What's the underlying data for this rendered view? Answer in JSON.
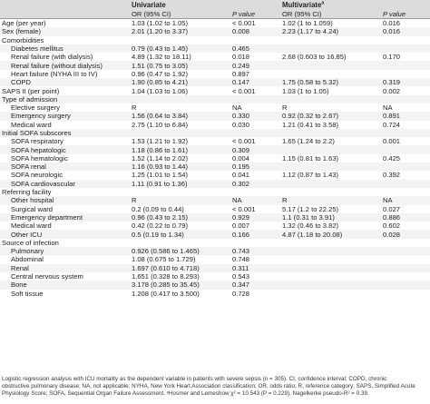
{
  "header": {
    "group_univariate": "Univariate",
    "group_multivariate": "Multivariate",
    "group_multivariate_mark": "a",
    "col_or": "OR (95% CI)",
    "col_p": "P value"
  },
  "rows": [
    {
      "label": "Age (per year)",
      "indent": false,
      "uni_or": "1.03 (1.02 to 1.05)",
      "uni_p": "< 0.001",
      "multi_or": "1.02 (1 to 1.059)",
      "multi_p": "0.016"
    },
    {
      "label": "Sex (female)",
      "indent": false,
      "uni_or": "2.01 (1.20 to 3.37)",
      "uni_p": "0.008",
      "multi_or": "2.23 (1.17 to 4.24)",
      "multi_p": "0.016"
    },
    {
      "label": "Comorbidities",
      "indent": false,
      "uni_or": "",
      "uni_p": "",
      "multi_or": "",
      "multi_p": ""
    },
    {
      "label": "Diabetes mellitus",
      "indent": true,
      "uni_or": "0.79 (0.43 to 1.45)",
      "uni_p": "0.465",
      "multi_or": "",
      "multi_p": ""
    },
    {
      "label": "Renal failure (with dialysis)",
      "indent": true,
      "uni_or": "4.89 (1.32 to 18.11)",
      "uni_p": "0.018",
      "multi_or": "2.68 (0.603 to 16.85)",
      "multi_p": "0.170"
    },
    {
      "label": "Renal failure (without dialysis)",
      "indent": true,
      "uni_or": "1.51 (0.75 to 3.05)",
      "uni_p": "0.249",
      "multi_or": "",
      "multi_p": ""
    },
    {
      "label": "Heart failure (NYHA III to IV)",
      "indent": true,
      "uni_or": "0.96 (0.47 to 1.92)",
      "uni_p": "0.897",
      "multi_or": "",
      "multi_p": ""
    },
    {
      "label": "COPD",
      "indent": true,
      "uni_or": "1.90 (0.85 to 4.21)",
      "uni_p": "0.147",
      "multi_or": "1.75 (0.58 to 5.32)",
      "multi_p": "0.319"
    },
    {
      "label": "SAPS II (per point)",
      "indent": false,
      "uni_or": "1.04 (1.03 to 1.06)",
      "uni_p": "< 0.001",
      "multi_or": "1.03 (1 to 1.05)",
      "multi_p": "0.002"
    },
    {
      "label": "Type of admission",
      "indent": false,
      "uni_or": "",
      "uni_p": "",
      "multi_or": "",
      "multi_p": ""
    },
    {
      "label": "Elective surgery",
      "indent": true,
      "uni_or": "R",
      "uni_p": "NA",
      "multi_or": "R",
      "multi_p": "NA"
    },
    {
      "label": "Emergency surgery",
      "indent": true,
      "uni_or": "1.56 (0.64 to 3.84)",
      "uni_p": "0.330",
      "multi_or": "0.92 (0.32 to 2.67)",
      "multi_p": "0.891"
    },
    {
      "label": "Medical ward",
      "indent": true,
      "uni_or": "2.75 (1.10 to 6.84)",
      "uni_p": "0.030",
      "multi_or": "1.21 (0.41 to 3.58)",
      "multi_p": "0.724"
    },
    {
      "label": "Initial SOFA subscores",
      "indent": false,
      "uni_or": "",
      "uni_p": "",
      "multi_or": "",
      "multi_p": ""
    },
    {
      "label": "SOFA respiratory",
      "indent": true,
      "uni_or": "1.53 (1.21 to 1.92)",
      "uni_p": "< 0.001",
      "multi_or": "1.65 (1.24 to 2.2)",
      "multi_p": "0.001"
    },
    {
      "label": "SOFA hepatologic",
      "indent": true,
      "uni_or": "1.18 (0.86 to 1.61)",
      "uni_p": "0.309",
      "multi_or": "",
      "multi_p": ""
    },
    {
      "label": "SOFA hematologic",
      "indent": true,
      "uni_or": "1.52 (1.14 to 2.02)",
      "uni_p": "0.004",
      "multi_or": "1.15 (0.81 to 1.63)",
      "multi_p": "0.425"
    },
    {
      "label": "SOFA renal",
      "indent": true,
      "uni_or": "1.16 (0.93 to 1.44)",
      "uni_p": "0.195",
      "multi_or": "",
      "multi_p": ""
    },
    {
      "label": "SOFA neurologic",
      "indent": true,
      "uni_or": "1.25 (1.01 to 1.54)",
      "uni_p": "0.041",
      "multi_or": "1.12 (0.87 to 1.43)",
      "multi_p": "0.392"
    },
    {
      "label": "SOFA cardiovascular",
      "indent": true,
      "uni_or": "1.11 (0.91 to 1.36)",
      "uni_p": "0.302",
      "multi_or": "",
      "multi_p": ""
    },
    {
      "label": "Referring facility",
      "indent": false,
      "uni_or": "",
      "uni_p": "",
      "multi_or": "",
      "multi_p": ""
    },
    {
      "label": "Other hospital",
      "indent": true,
      "uni_or": "R",
      "uni_p": "NA",
      "multi_or": "R",
      "multi_p": "NA"
    },
    {
      "label": "Surgical ward",
      "indent": true,
      "uni_or": "0.2 (0.09 to 0.44)",
      "uni_p": "< 0.001",
      "multi_or": "5.17 (1.2 to 22.25)",
      "multi_p": "0.027"
    },
    {
      "label": "Emergency department",
      "indent": true,
      "uni_or": "0.96 (0.43 to 2.15)",
      "uni_p": "0.929",
      "multi_or": "1.1 (0.31 to 3.91)",
      "multi_p": "0.886"
    },
    {
      "label": "Medical ward",
      "indent": true,
      "uni_or": "0.42 (0.22 to 0.79)",
      "uni_p": "0.007",
      "multi_or": "1.32 (0.46 to 3.82)",
      "multi_p": "0.602"
    },
    {
      "label": "Other ICU",
      "indent": true,
      "uni_or": "0.5 (0.19 to 1.34)",
      "uni_p": "0.166",
      "multi_or": "4.87 (1.18 to 20.08)",
      "multi_p": "0.028"
    },
    {
      "label": "Source of infection",
      "indent": false,
      "uni_or": "",
      "uni_p": "",
      "multi_or": "",
      "multi_p": ""
    },
    {
      "label": "Pulmonary",
      "indent": true,
      "uni_or": "0.926 (0.586 to 1.465)",
      "uni_p": "0.743",
      "multi_or": "",
      "multi_p": ""
    },
    {
      "label": "Abdominal",
      "indent": true,
      "uni_or": "1.08 (0.675 to 1.729)",
      "uni_p": "0.748",
      "multi_or": "",
      "multi_p": ""
    },
    {
      "label": "Renal",
      "indent": true,
      "uni_or": "1.697 (0.610 to 4.718)",
      "uni_p": "0.311",
      "multi_or": "",
      "multi_p": ""
    },
    {
      "label": "Central nervous system",
      "indent": true,
      "uni_or": "1.651 (0.328 to 8.293)",
      "uni_p": "0.543",
      "multi_or": "",
      "multi_p": ""
    },
    {
      "label": "Bone",
      "indent": true,
      "uni_or": "3.178 (0.285 to 35.45)",
      "uni_p": "0.347",
      "multi_or": "",
      "multi_p": ""
    },
    {
      "label": "Soft tissue",
      "indent": true,
      "uni_or": "1.208 (0.417 to 3.500)",
      "uni_p": "0.728",
      "multi_or": "",
      "multi_p": ""
    }
  ],
  "footnote": {
    "line1": "Logistic regression analysis with ICU mortality as the dependent variable in patients with severe sepsis (n = 305). CI, confidence interval; COPD, chronic",
    "line2": "obstructive pulmonary disease; NA, not applicable; NYHA, New York Heart Association classification; OR, odds ratio; R, reference category; SAPS, Simplified Acute",
    "line3": "Physiology Score; SOFA, Sequential Organ Failure Assessment. ᵃHosmer and Lemeshow χ² = 10.543 (P = 0.229), Nagelkerke pseudo-R² = 0.39."
  }
}
